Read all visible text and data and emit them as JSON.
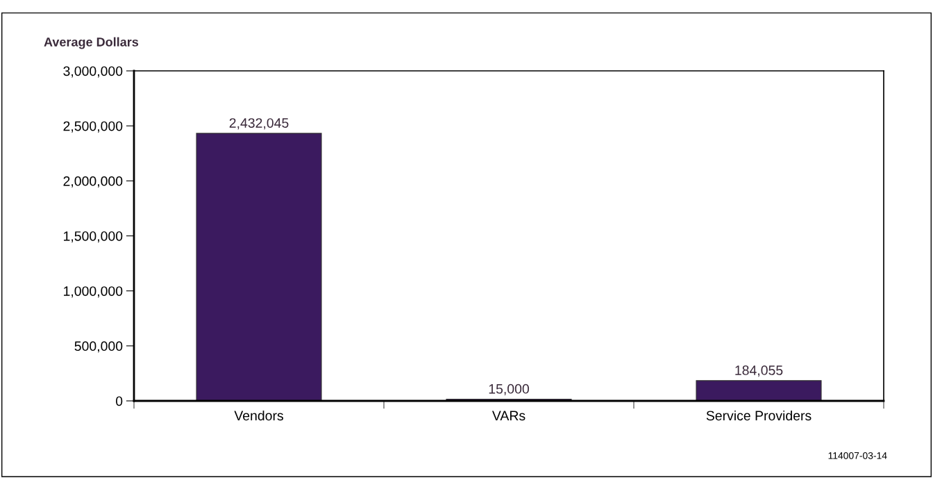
{
  "chart_data": {
    "type": "bar",
    "ylabel": "Average Dollars",
    "categories": [
      "Vendors",
      "VARs",
      "Service Providers"
    ],
    "values": [
      2432045,
      15000,
      184055
    ],
    "value_labels": [
      "2,432,045",
      "15,000",
      "184,055"
    ],
    "color": "#3b1a5f",
    "ylim": [
      0,
      3000000
    ],
    "yticks": [
      {
        "value": 0,
        "label": "0"
      },
      {
        "value": 500000,
        "label": "500,000"
      },
      {
        "value": 1000000,
        "label": "1,000,000"
      },
      {
        "value": 1500000,
        "label": "1,500,000"
      },
      {
        "value": 2000000,
        "label": "2,000,000"
      },
      {
        "value": 2500000,
        "label": "2,500,000"
      },
      {
        "value": 3000000,
        "label": "3,000,000"
      }
    ],
    "grid": false,
    "legend": false,
    "annotations": [
      "114007-03-14"
    ]
  }
}
